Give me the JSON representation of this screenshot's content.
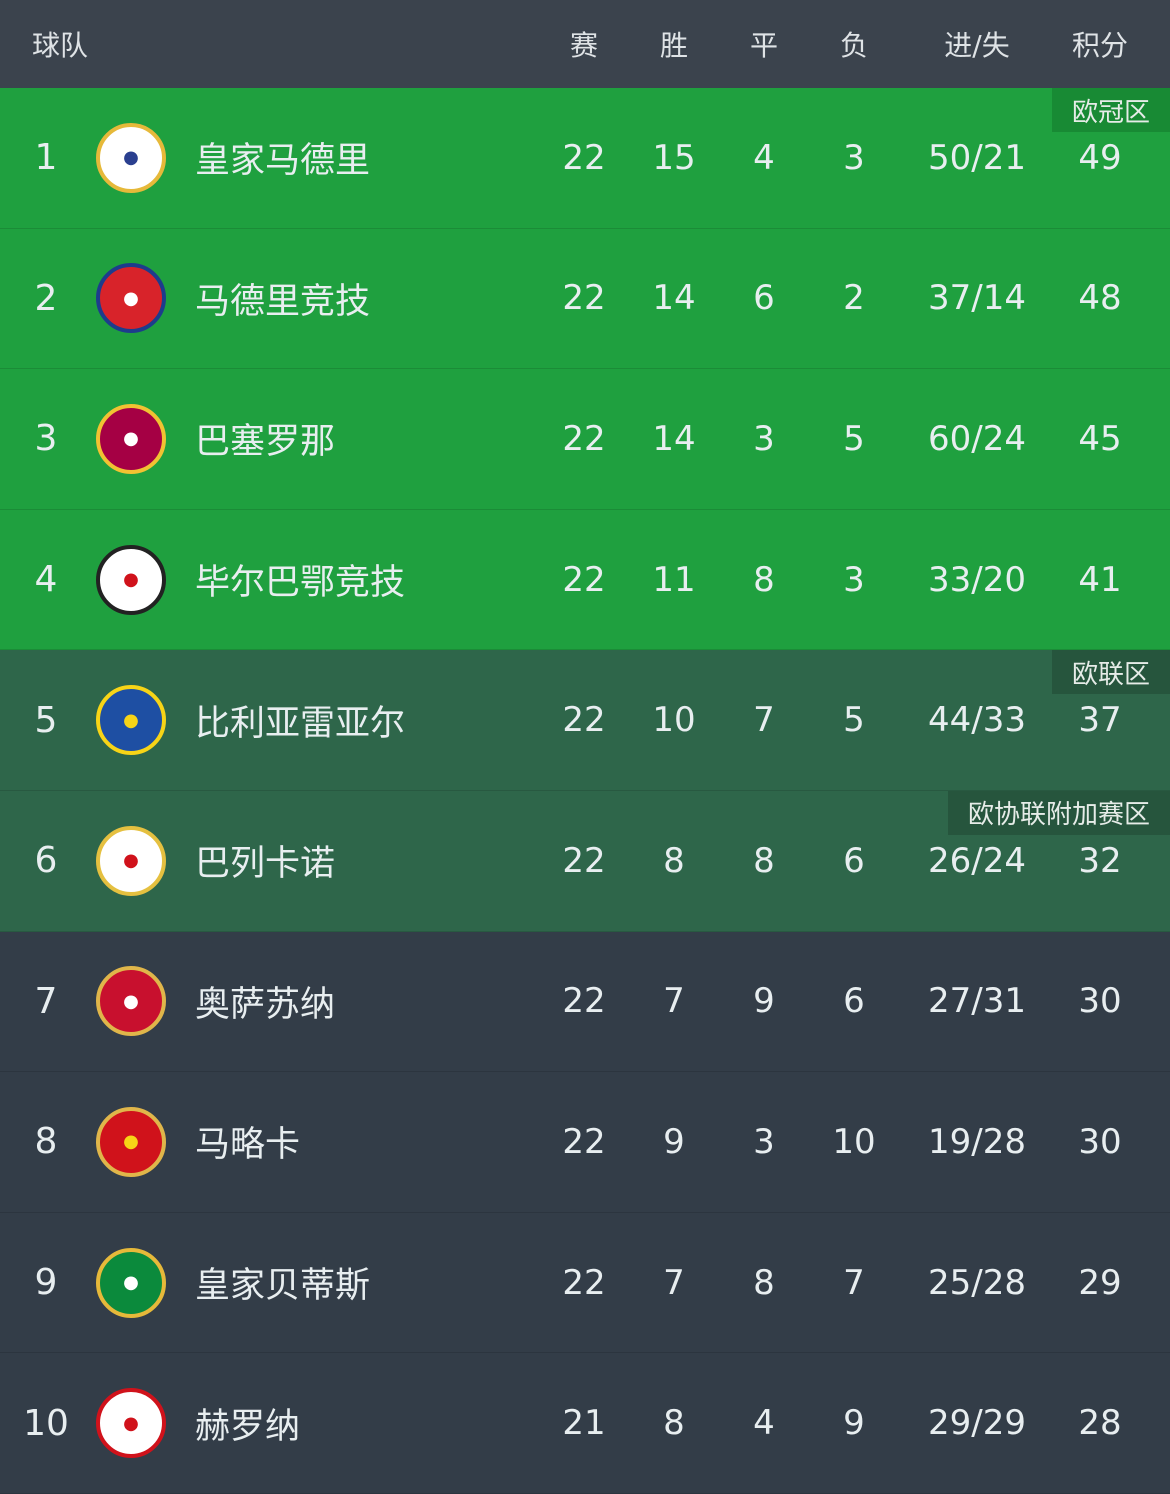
{
  "header": {
    "team": "球队",
    "played": "赛",
    "won": "胜",
    "drawn": "平",
    "lost": "负",
    "goals": "进/失",
    "points": "积分"
  },
  "colors": {
    "champions": "#1fa03f",
    "europa": "#2e664a",
    "default": "#333d48",
    "header": "#3b434d"
  },
  "rows": [
    {
      "rank": "1",
      "team": "皇家马德里",
      "logo": "real-madrid-crest",
      "played": "22",
      "won": "15",
      "drawn": "4",
      "lost": "3",
      "goals": "50/21",
      "points": "49",
      "zone": "green",
      "badge": "欧冠区"
    },
    {
      "rank": "2",
      "team": "马德里竞技",
      "logo": "atletico-madrid-crest",
      "played": "22",
      "won": "14",
      "drawn": "6",
      "lost": "2",
      "goals": "37/14",
      "points": "48",
      "zone": "green"
    },
    {
      "rank": "3",
      "team": "巴塞罗那",
      "logo": "barcelona-crest",
      "played": "22",
      "won": "14",
      "drawn": "3",
      "lost": "5",
      "goals": "60/24",
      "points": "45",
      "zone": "green"
    },
    {
      "rank": "4",
      "team": "毕尔巴鄂竞技",
      "logo": "athletic-bilbao-crest",
      "played": "22",
      "won": "11",
      "drawn": "8",
      "lost": "3",
      "goals": "33/20",
      "points": "41",
      "zone": "green"
    },
    {
      "rank": "5",
      "team": "比利亚雷亚尔",
      "logo": "villarreal-crest",
      "played": "22",
      "won": "10",
      "drawn": "7",
      "lost": "5",
      "goals": "44/33",
      "points": "37",
      "zone": "dgreen",
      "badge": "欧联区"
    },
    {
      "rank": "6",
      "team": "巴列卡诺",
      "logo": "rayo-vallecano-crest",
      "played": "22",
      "won": "8",
      "drawn": "8",
      "lost": "6",
      "goals": "26/24",
      "points": "32",
      "zone": "dgreen",
      "badge": "欧协联附加赛区"
    },
    {
      "rank": "7",
      "team": "奥萨苏纳",
      "logo": "osasuna-crest",
      "played": "22",
      "won": "7",
      "drawn": "9",
      "lost": "6",
      "goals": "27/31",
      "points": "30",
      "zone": ""
    },
    {
      "rank": "8",
      "team": "马略卡",
      "logo": "mallorca-crest",
      "played": "22",
      "won": "9",
      "drawn": "3",
      "lost": "10",
      "goals": "19/28",
      "points": "30",
      "zone": ""
    },
    {
      "rank": "9",
      "team": "皇家贝蒂斯",
      "logo": "real-betis-crest",
      "played": "22",
      "won": "7",
      "drawn": "8",
      "lost": "7",
      "goals": "25/28",
      "points": "29",
      "zone": ""
    },
    {
      "rank": "10",
      "team": "赫罗纳",
      "logo": "girona-crest",
      "played": "21",
      "won": "8",
      "drawn": "4",
      "lost": "9",
      "goals": "29/29",
      "points": "28",
      "zone": ""
    }
  ]
}
